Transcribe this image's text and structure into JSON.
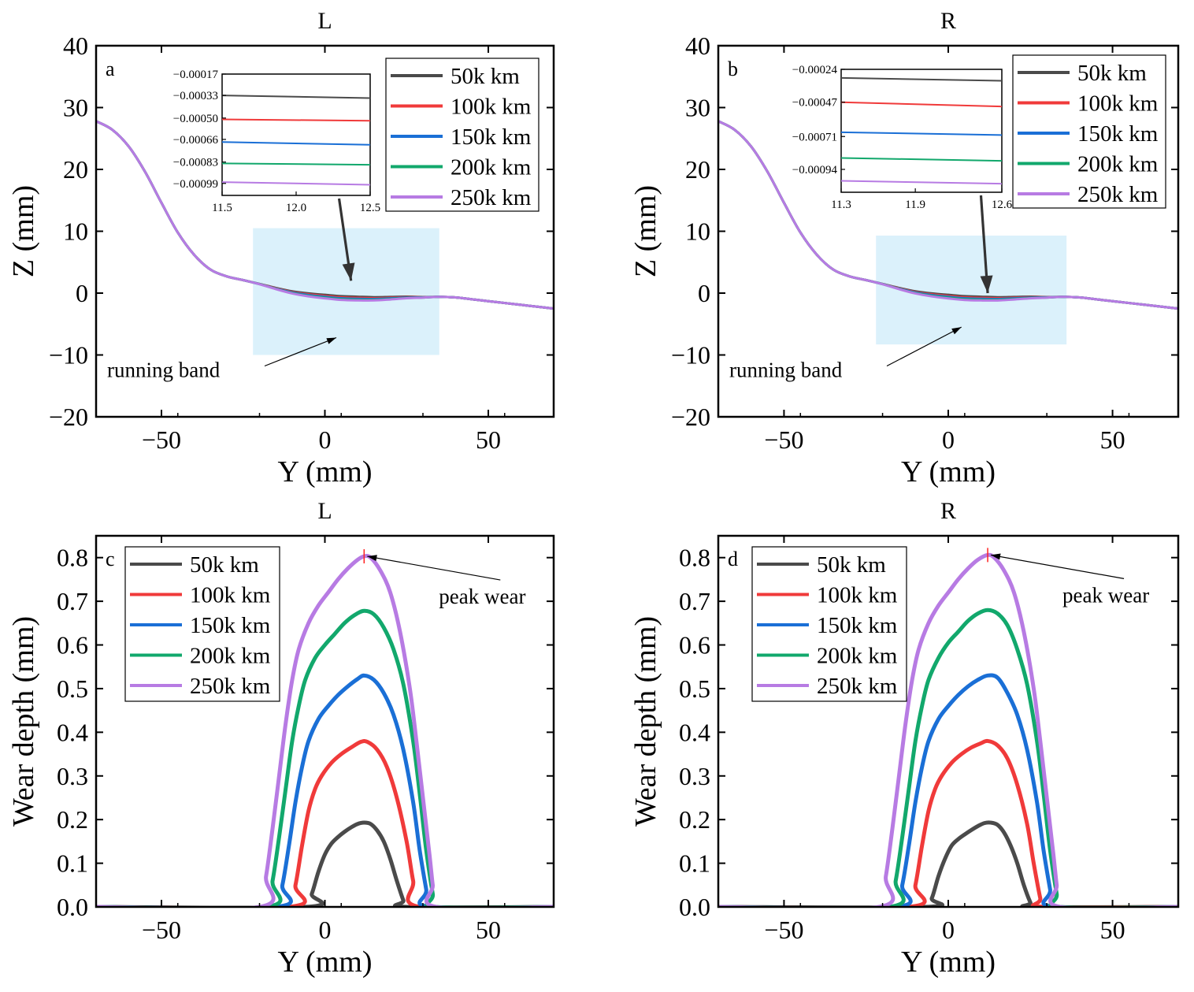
{
  "figure": {
    "legend_labels": [
      "50k km",
      "100k km",
      "150k km",
      "200k km",
      "250k km"
    ],
    "series_colors": [
      "#4a4a4a",
      "#f03a3a",
      "#1a6fd6",
      "#12a86c",
      "#b77be3"
    ],
    "band_color": "#dbf1fb",
    "peak_marker_color": "#ff2020"
  },
  "chart_data": [
    {
      "id": "a",
      "type": "line",
      "title": "L",
      "panel_letter": "a",
      "xlabel": "Y (mm)",
      "ylabel": "Z (mm)",
      "xlim": [
        -70,
        70
      ],
      "ylim": [
        -20,
        40
      ],
      "xticks": [
        -50,
        0,
        50
      ],
      "xtick_labels": [
        "−50",
        "0",
        "50"
      ],
      "yticks": [
        -20,
        -10,
        0,
        10,
        20,
        30,
        40
      ],
      "ytick_labels": [
        "−20",
        "−10",
        "0",
        "10",
        "20",
        "30",
        "40"
      ],
      "base_profile": {
        "y": [
          -70,
          -65,
          -60,
          -55,
          -50,
          -45,
          -40,
          -35,
          -30,
          -25,
          -20,
          -15,
          -10,
          -5,
          0,
          5,
          10,
          15,
          20,
          25,
          30,
          35,
          40,
          45,
          50,
          55,
          60,
          65,
          70
        ],
        "z": [
          27.8,
          26.4,
          23.7,
          19.6,
          14.6,
          9.8,
          6.2,
          3.8,
          2.7,
          2.1,
          1.5,
          0.9,
          0.4,
          0.1,
          -0.1,
          -0.3,
          -0.4,
          -0.5,
          -0.5,
          -0.5,
          -0.6,
          -0.6,
          -0.7,
          -1.0,
          -1.3,
          -1.6,
          -1.9,
          -2.2,
          -2.5
        ]
      },
      "series": [
        {
          "name": "50k km",
          "peak_wear": 0.19
        },
        {
          "name": "100k km",
          "peak_wear": 0.38
        },
        {
          "name": "150k km",
          "peak_wear": 0.53
        },
        {
          "name": "200k km",
          "peak_wear": 0.68
        },
        {
          "name": "250k km",
          "peak_wear": 0.8
        }
      ],
      "running_band": {
        "x": [
          -22,
          35
        ],
        "y": [
          -10,
          10.5
        ],
        "label": "running band"
      },
      "inset": {
        "xlim": [
          11.5,
          12.5
        ],
        "xticks": [
          11.5,
          12.0,
          12.5
        ],
        "xtick_labels": [
          "11.5",
          "12.0",
          "12.5"
        ],
        "ylim": [
          -0.00108,
          -0.00017
        ],
        "yticks": [
          -0.00017,
          -0.00033,
          -0.0005,
          -0.00066,
          -0.00083,
          -0.00099
        ],
        "ytick_labels": [
          "−0.00017",
          "−0.00033",
          "−0.00050",
          "−0.00066",
          "−0.00083",
          "−0.00099"
        ],
        "series": [
          {
            "name": "50k km",
            "values": [
              -0.00033,
              -0.00035
            ]
          },
          {
            "name": "100k km",
            "values": [
              -0.00051,
              -0.00052
            ]
          },
          {
            "name": "150k km",
            "values": [
              -0.00068,
              -0.0007
            ]
          },
          {
            "name": "200k km",
            "values": [
              -0.00084,
              -0.00085
            ]
          },
          {
            "name": "250k km",
            "values": [
              -0.00098,
              -0.001
            ]
          }
        ],
        "arrow_target": [
          8,
          2
        ]
      }
    },
    {
      "id": "b",
      "type": "line",
      "title": "R",
      "panel_letter": "b",
      "xlabel": "Y (mm)",
      "ylabel": "Z (mm)",
      "xlim": [
        -70,
        70
      ],
      "ylim": [
        -20,
        40
      ],
      "xticks": [
        -50,
        0,
        50
      ],
      "xtick_labels": [
        "−50",
        "0",
        "50"
      ],
      "yticks": [
        -20,
        -10,
        0,
        10,
        20,
        30,
        40
      ],
      "ytick_labels": [
        "−20",
        "−10",
        "0",
        "10",
        "20",
        "30",
        "40"
      ],
      "base_profile": {
        "y": [
          -70,
          -65,
          -60,
          -55,
          -50,
          -45,
          -40,
          -35,
          -30,
          -25,
          -20,
          -15,
          -10,
          -5,
          0,
          5,
          10,
          15,
          20,
          25,
          30,
          35,
          40,
          45,
          50,
          55,
          60,
          65,
          70
        ],
        "z": [
          27.8,
          26.4,
          23.7,
          19.6,
          14.6,
          9.8,
          6.2,
          3.8,
          2.7,
          2.1,
          1.5,
          0.9,
          0.4,
          0.1,
          -0.1,
          -0.3,
          -0.4,
          -0.5,
          -0.5,
          -0.5,
          -0.6,
          -0.6,
          -0.7,
          -1.0,
          -1.3,
          -1.6,
          -1.9,
          -2.2,
          -2.5
        ]
      },
      "series": [
        {
          "name": "50k km",
          "peak_wear": 0.19
        },
        {
          "name": "100k km",
          "peak_wear": 0.38
        },
        {
          "name": "150k km",
          "peak_wear": 0.53
        },
        {
          "name": "200k km",
          "peak_wear": 0.68
        },
        {
          "name": "250k km",
          "peak_wear": 0.81
        }
      ],
      "running_band": {
        "x": [
          -22,
          36
        ],
        "y": [
          -8.3,
          9.3
        ],
        "label": "running band"
      },
      "inset": {
        "xlim": [
          11.3,
          12.6
        ],
        "xticks": [
          11.3,
          11.9,
          12.6
        ],
        "xtick_labels": [
          "11.3",
          "11.9",
          "12.6"
        ],
        "ylim": [
          -0.0011,
          -0.00024
        ],
        "yticks": [
          -0.00024,
          -0.00047,
          -0.00071,
          -0.00094
        ],
        "ytick_labels": [
          "−0.00024",
          "−0.00047",
          "−0.00071",
          "−0.00094"
        ],
        "series": [
          {
            "name": "50k km",
            "values": [
              -0.0003,
              -0.00032
            ]
          },
          {
            "name": "100k km",
            "values": [
              -0.00047,
              -0.0005
            ]
          },
          {
            "name": "150k km",
            "values": [
              -0.00068,
              -0.0007
            ]
          },
          {
            "name": "200k km",
            "values": [
              -0.00086,
              -0.00088
            ]
          },
          {
            "name": "250k km",
            "values": [
              -0.00102,
              -0.00104
            ]
          }
        ],
        "arrow_target": [
          12,
          0
        ]
      }
    },
    {
      "id": "c",
      "type": "line",
      "title": "L",
      "panel_letter": "c",
      "xlabel": "Y (mm)",
      "ylabel": "Wear depth (mm)",
      "xlim": [
        -70,
        70
      ],
      "ylim": [
        0,
        0.85
      ],
      "xticks": [
        -50,
        0,
        50
      ],
      "xtick_labels": [
        "−50",
        "0",
        "50"
      ],
      "yticks": [
        0,
        0.1,
        0.2,
        0.3,
        0.4,
        0.5,
        0.6,
        0.7,
        0.8
      ],
      "ytick_labels": [
        "0.0",
        "0.1",
        "0.2",
        "0.3",
        "0.4",
        "0.5",
        "0.6",
        "0.7",
        "0.8"
      ],
      "series": [
        {
          "name": "50k km",
          "x": [
            -70,
            -6,
            -4,
            -2,
            0,
            2,
            4,
            6,
            8,
            10,
            12,
            14,
            16,
            18,
            20,
            22,
            24,
            25,
            70
          ],
          "y": [
            0,
            0,
            0.03,
            0.08,
            0.12,
            0.145,
            0.16,
            0.172,
            0.182,
            0.19,
            0.193,
            0.19,
            0.175,
            0.15,
            0.11,
            0.06,
            0.015,
            0,
            0
          ]
        },
        {
          "name": "100k km",
          "x": [
            -70,
            -11,
            -9,
            -7,
            -5,
            -3,
            -1,
            2,
            5,
            8,
            11,
            13,
            16,
            19,
            22,
            25,
            27,
            29,
            70
          ],
          "y": [
            0,
            0,
            0.05,
            0.14,
            0.22,
            0.27,
            0.3,
            0.33,
            0.35,
            0.365,
            0.378,
            0.378,
            0.36,
            0.32,
            0.25,
            0.15,
            0.06,
            0,
            0
          ]
        },
        {
          "name": "150k km",
          "x": [
            -70,
            -15,
            -13,
            -11,
            -9,
            -7,
            -5,
            -2,
            1,
            4,
            7,
            10,
            12,
            15,
            18,
            21,
            24,
            27,
            29,
            31,
            32,
            70
          ],
          "y": [
            0,
            0,
            0.05,
            0.14,
            0.24,
            0.32,
            0.38,
            0.43,
            0.46,
            0.485,
            0.505,
            0.522,
            0.53,
            0.52,
            0.49,
            0.44,
            0.36,
            0.24,
            0.13,
            0.04,
            0,
            0
          ]
        },
        {
          "name": "200k km",
          "x": [
            -70,
            -18,
            -16,
            -14,
            -12,
            -10,
            -8,
            -6,
            -3,
            0,
            3,
            6,
            9,
            12,
            15,
            18,
            21,
            24,
            27,
            29,
            31,
            33,
            34,
            70
          ],
          "y": [
            0,
            0,
            0.06,
            0.16,
            0.27,
            0.38,
            0.46,
            0.52,
            0.57,
            0.6,
            0.625,
            0.65,
            0.668,
            0.678,
            0.67,
            0.64,
            0.59,
            0.51,
            0.38,
            0.26,
            0.13,
            0.03,
            0,
            0
          ]
        },
        {
          "name": "250k km",
          "x": [
            -70,
            -20,
            -18,
            -16,
            -14,
            -12,
            -10,
            -8,
            -5,
            -2,
            1,
            4,
            7,
            10,
            12,
            14,
            17,
            20,
            23,
            26,
            28,
            30,
            32,
            33,
            34,
            70
          ],
          "y": [
            0,
            0,
            0.07,
            0.18,
            0.3,
            0.42,
            0.52,
            0.59,
            0.65,
            0.69,
            0.72,
            0.75,
            0.775,
            0.795,
            0.803,
            0.8,
            0.77,
            0.72,
            0.63,
            0.5,
            0.38,
            0.25,
            0.12,
            0.05,
            0,
            0
          ]
        }
      ],
      "peak": {
        "x": 12,
        "y": 0.803,
        "label": "peak wear"
      },
      "legend_position": "upper-left"
    },
    {
      "id": "d",
      "type": "line",
      "title": "R",
      "panel_letter": "d",
      "xlabel": "Y (mm)",
      "ylabel": "Wear depth (mm)",
      "xlim": [
        -70,
        70
      ],
      "ylim": [
        0,
        0.85
      ],
      "xticks": [
        -50,
        0,
        50
      ],
      "xtick_labels": [
        "−50",
        "0",
        "50"
      ],
      "yticks": [
        0,
        0.1,
        0.2,
        0.3,
        0.4,
        0.5,
        0.6,
        0.7,
        0.8
      ],
      "ytick_labels": [
        "0.0",
        "0.1",
        "0.2",
        "0.3",
        "0.4",
        "0.5",
        "0.6",
        "0.7",
        "0.8"
      ],
      "series": [
        {
          "name": "50k km",
          "x": [
            -70,
            -7,
            -5,
            -3,
            -1,
            1,
            3,
            5,
            7,
            9,
            11,
            13,
            15,
            17,
            19,
            21,
            23,
            25,
            26,
            70
          ],
          "y": [
            0,
            0,
            0.02,
            0.07,
            0.11,
            0.14,
            0.155,
            0.166,
            0.176,
            0.185,
            0.192,
            0.193,
            0.188,
            0.17,
            0.14,
            0.1,
            0.05,
            0.01,
            0,
            0
          ]
        },
        {
          "name": "100k km",
          "x": [
            -70,
            -12,
            -10,
            -8,
            -6,
            -4,
            -2,
            1,
            4,
            7,
            10,
            12,
            15,
            18,
            21,
            24,
            26,
            28,
            29,
            70
          ],
          "y": [
            0,
            0,
            0.05,
            0.14,
            0.22,
            0.27,
            0.3,
            0.33,
            0.35,
            0.365,
            0.375,
            0.38,
            0.37,
            0.34,
            0.28,
            0.19,
            0.1,
            0.02,
            0,
            0
          ]
        },
        {
          "name": "150k km",
          "x": [
            -70,
            -16,
            -14,
            -12,
            -10,
            -8,
            -6,
            -3,
            0,
            3,
            6,
            9,
            12,
            15,
            18,
            21,
            24,
            27,
            29,
            31,
            32,
            70
          ],
          "y": [
            0,
            0,
            0.05,
            0.14,
            0.24,
            0.32,
            0.38,
            0.43,
            0.46,
            0.485,
            0.505,
            0.52,
            0.53,
            0.525,
            0.49,
            0.44,
            0.36,
            0.24,
            0.13,
            0.04,
            0,
            0
          ]
        },
        {
          "name": "200k km",
          "x": [
            -70,
            -18,
            -16,
            -14,
            -12,
            -10,
            -8,
            -6,
            -3,
            0,
            3,
            6,
            9,
            12,
            15,
            18,
            21,
            24,
            27,
            29,
            31,
            33,
            34,
            70
          ],
          "y": [
            0,
            0,
            0.06,
            0.16,
            0.27,
            0.38,
            0.46,
            0.52,
            0.57,
            0.605,
            0.63,
            0.655,
            0.672,
            0.68,
            0.672,
            0.645,
            0.59,
            0.51,
            0.38,
            0.26,
            0.13,
            0.03,
            0,
            0
          ]
        },
        {
          "name": "250k km",
          "x": [
            -70,
            -21,
            -19,
            -17,
            -15,
            -13,
            -11,
            -9,
            -6,
            -3,
            0,
            3,
            6,
            9,
            12,
            14,
            17,
            20,
            23,
            26,
            28,
            30,
            32,
            33,
            34,
            70
          ],
          "y": [
            0,
            0,
            0.07,
            0.18,
            0.3,
            0.42,
            0.52,
            0.59,
            0.65,
            0.69,
            0.72,
            0.75,
            0.775,
            0.795,
            0.806,
            0.8,
            0.77,
            0.72,
            0.63,
            0.5,
            0.38,
            0.25,
            0.12,
            0.05,
            0,
            0
          ]
        }
      ],
      "peak": {
        "x": 12,
        "y": 0.806,
        "label": "peak wear"
      },
      "legend_position": "upper-left"
    }
  ]
}
